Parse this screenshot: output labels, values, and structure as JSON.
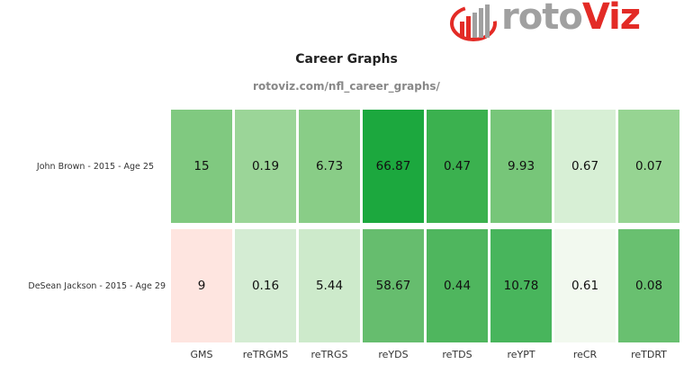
{
  "logo": {
    "text_main": "roto",
    "text_accent": "Viz"
  },
  "chart_data": {
    "type": "heatmap",
    "title": "Career Graphs",
    "subtitle": "rotoviz.com/nfl_career_graphs/",
    "columns": [
      "GMS",
      "reTRGMS",
      "reTRGS",
      "reYDS",
      "reTDS",
      "reYPT",
      "reCR",
      "reTDRT"
    ],
    "rows": [
      {
        "label": "John Brown - 2015 - Age 25",
        "values": [
          "15",
          "0.19",
          "6.73",
          "66.87",
          "0.47",
          "9.93",
          "0.67",
          "0.07"
        ],
        "colors": [
          "#80c980",
          "#9bd598",
          "#89cd87",
          "#1ca83e",
          "#3bb14f",
          "#77c679",
          "#d7efd5",
          "#96d492"
        ]
      },
      {
        "label": "DeSean Jackson - 2015 - Age 29",
        "values": [
          "9",
          "0.16",
          "5.44",
          "58.67",
          "0.44",
          "10.78",
          "0.61",
          "0.08"
        ],
        "colors": [
          "#fee5e0",
          "#d4ecd3",
          "#cdeacb",
          "#66bd6e",
          "#4fb65e",
          "#48b55c",
          "#f2f9ef",
          "#69c070"
        ]
      }
    ]
  }
}
